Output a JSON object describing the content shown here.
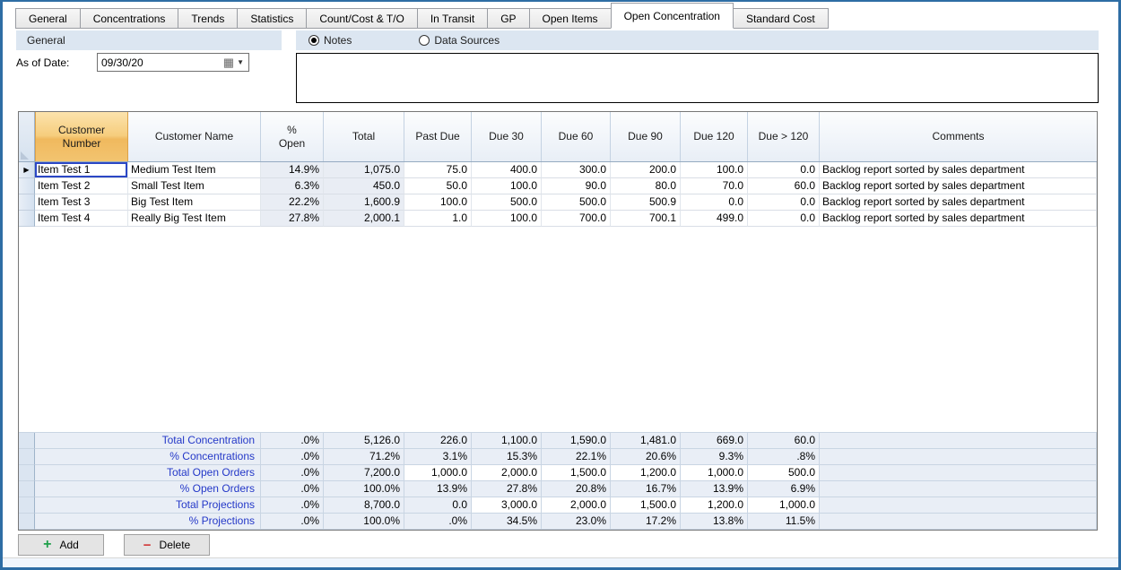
{
  "tabs": {
    "items": [
      "General",
      "Concentrations",
      "Trends",
      "Statistics",
      "Count/Cost & T/O",
      "In Transit",
      "GP",
      "Open Items",
      "Open Concentration",
      "Standard Cost"
    ],
    "selected": "Open Concentration"
  },
  "general_panel": {
    "title": "General",
    "as_of_date_label": "As of Date:",
    "as_of_date_value": "09/30/20"
  },
  "notes_panel": {
    "options": [
      {
        "label": "Notes",
        "selected": true
      },
      {
        "label": "Data Sources",
        "selected": false
      }
    ],
    "notes_text": ""
  },
  "grid": {
    "columns": [
      "Customer Number",
      "Customer Name",
      "% Open",
      "Total",
      "Past Due",
      "Due 30",
      "Due 60",
      "Due 90",
      "Due 120",
      "Due > 120",
      "Comments"
    ],
    "current_row": 0,
    "selected_cell": {
      "row": 0,
      "col": 0
    },
    "rows": [
      [
        "Item Test 1",
        "Medium Test Item",
        "14.9%",
        "1,075.0",
        "75.0",
        "400.0",
        "300.0",
        "200.0",
        "100.0",
        "0.0",
        "Backlog report sorted by sales department"
      ],
      [
        "Item Test 2",
        "Small Test Item",
        "6.3%",
        "450.0",
        "50.0",
        "100.0",
        "90.0",
        "80.0",
        "70.0",
        "60.0",
        "Backlog report sorted by sales department"
      ],
      [
        "Item Test 3",
        "Big Test Item",
        "22.2%",
        "1,600.9",
        "100.0",
        "500.0",
        "500.0",
        "500.9",
        "0.0",
        "0.0",
        "Backlog report sorted by sales department"
      ],
      [
        "Item Test 4",
        "Really Big Test Item",
        "27.8%",
        "2,000.1",
        "1.0",
        "100.0",
        "700.0",
        "700.1",
        "499.0",
        "0.0",
        "Backlog report sorted by sales department"
      ]
    ],
    "summary_rows": [
      {
        "label": "Total Concentration",
        "values": [
          ".0%",
          "5,126.0",
          "226.0",
          "1,100.0",
          "1,590.0",
          "1,481.0",
          "669.0",
          "60.0"
        ],
        "editable_cells": []
      },
      {
        "label": "% Concentrations",
        "values": [
          ".0%",
          "71.2%",
          "3.1%",
          "15.3%",
          "22.1%",
          "20.6%",
          "9.3%",
          ".8%"
        ],
        "editable_cells": []
      },
      {
        "label": "Total Open Orders",
        "values": [
          ".0%",
          "7,200.0",
          "1,000.0",
          "2,000.0",
          "1,500.0",
          "1,200.0",
          "1,000.0",
          "500.0"
        ],
        "editable_cells": [
          2,
          3,
          4,
          5,
          6,
          7
        ]
      },
      {
        "label": "% Open Orders",
        "values": [
          ".0%",
          "100.0%",
          "13.9%",
          "27.8%",
          "20.8%",
          "16.7%",
          "13.9%",
          "6.9%"
        ],
        "editable_cells": []
      },
      {
        "label": "Total Projections",
        "values": [
          ".0%",
          "8,700.0",
          "0.0",
          "3,000.0",
          "2,000.0",
          "1,500.0",
          "1,200.0",
          "1,000.0"
        ],
        "editable_cells": [
          3,
          4,
          5,
          6,
          7
        ]
      },
      {
        "label": "% Projections",
        "values": [
          ".0%",
          "100.0%",
          ".0%",
          "34.5%",
          "23.0%",
          "17.2%",
          "13.8%",
          "11.5%"
        ],
        "editable_cells": []
      }
    ]
  },
  "buttons": {
    "add_label": "Add",
    "delete_label": "Delete"
  },
  "icons": {
    "calendar": "▦",
    "dropdown": "▼",
    "scroll_up": "∧",
    "scroll_down": "∨",
    "add_plus": "+",
    "delete_minus": "−",
    "current_row": "▶"
  },
  "colors": {
    "window_border": "#2e6da4",
    "section_bar_bg": "#dce6f1",
    "grid_header_selected_top": "#fce3ad",
    "grid_header_selected_bottom": "#f3c470",
    "summary_label_text": "#2438c8",
    "selected_cell_border": "#2b47c5",
    "add_icon_green": "#1fa04a",
    "delete_icon_red": "#d23a3a"
  }
}
